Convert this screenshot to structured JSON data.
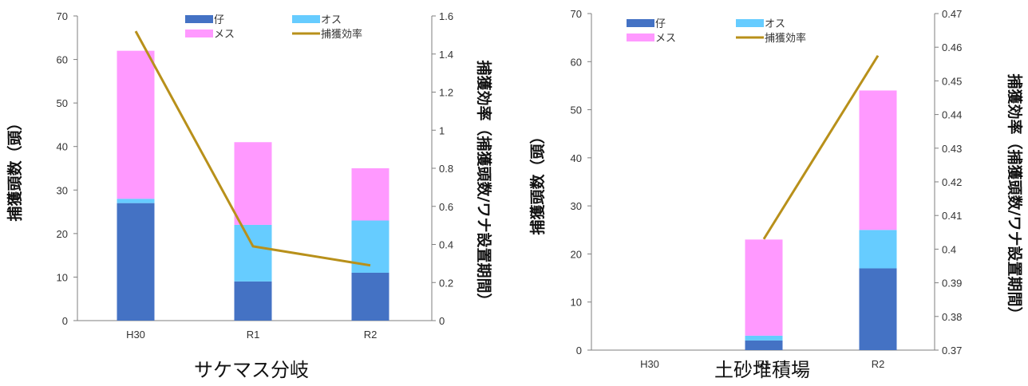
{
  "colors": {
    "kit": "#4472C4",
    "male": "#66CCFF",
    "female": "#FF99FF",
    "efficiency": "#B8901A",
    "axis": "#7F7F7F"
  },
  "chart_data": [
    {
      "type": "bar",
      "stacked": true,
      "title": "サケマス分岐",
      "ylabel": "捕獲頭数（頭）",
      "y2label": "捕獲効率（捕獲頭数/ワナ設置期間）",
      "categories": [
        "H30",
        "R1",
        "R2"
      ],
      "ylim": [
        0,
        70
      ],
      "yticks": [
        0,
        10,
        20,
        30,
        40,
        50,
        60,
        70
      ],
      "y2lim": [
        0,
        1.6
      ],
      "y2ticks": [
        "0",
        "0.2",
        "0.4",
        "0.6",
        "0.8",
        "1",
        "1.2",
        "1.4",
        "1.6"
      ],
      "series": [
        {
          "name": "仔",
          "values": [
            27,
            9,
            11
          ]
        },
        {
          "name": "オス",
          "values": [
            1,
            13,
            12
          ]
        },
        {
          "name": "メス",
          "values": [
            34,
            19,
            12
          ]
        }
      ],
      "line_series": {
        "name": "捕獲効率",
        "axis": "right",
        "values": [
          1.52,
          0.39,
          0.29
        ]
      },
      "legend": "top"
    },
    {
      "type": "bar",
      "stacked": true,
      "title": "土砂堆積場",
      "ylabel": "捕獲頭数（頭）",
      "y2label": "捕獲効率（捕獲頭数/ワナ設置期間）",
      "categories": [
        "H30",
        "R1",
        "R2"
      ],
      "ylim": [
        0,
        70
      ],
      "yticks": [
        0,
        10,
        20,
        30,
        40,
        50,
        60,
        70
      ],
      "y2lim": [
        0.37,
        0.47
      ],
      "y2ticks": [
        "0.37",
        "0.38",
        "0.39",
        "0.4",
        "0.41",
        "0.42",
        "0.43",
        "0.44",
        "0.45",
        "0.46",
        "0.47"
      ],
      "series": [
        {
          "name": "仔",
          "values": [
            0,
            2,
            17
          ]
        },
        {
          "name": "オス",
          "values": [
            0,
            1,
            8
          ]
        },
        {
          "name": "メス",
          "values": [
            0,
            20,
            29
          ]
        }
      ],
      "line_series": {
        "name": "捕獲効率",
        "axis": "right",
        "values": [
          null,
          0.403,
          0.4575
        ]
      },
      "legend": "top"
    }
  ]
}
